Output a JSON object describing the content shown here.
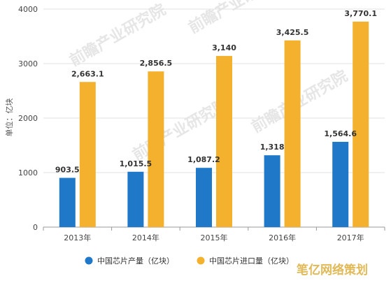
{
  "chart_data": {
    "type": "bar",
    "categories": [
      "2013年",
      "2014年",
      "2015年",
      "2016年",
      "2017年"
    ],
    "series": [
      {
        "name": "中国芯片产量（亿块）",
        "color": "#1f78c8",
        "values": [
          903.5,
          1015.5,
          1087.2,
          1318,
          1564.6
        ],
        "labels": [
          "903.5",
          "1,015.5",
          "1,087.2",
          "1,318",
          "1,564.6"
        ]
      },
      {
        "name": "中国芯片进口量（亿块）",
        "color": "#f3b12e",
        "values": [
          2663.1,
          2856.5,
          3140,
          3425.5,
          3770.1
        ],
        "labels": [
          "2,663.1",
          "2,856.5",
          "3,140",
          "3,425.5",
          "3,770.1"
        ]
      }
    ],
    "ylabel": "单位：亿块",
    "ylim": [
      0,
      4000
    ],
    "yticks": [
      0,
      1000,
      2000,
      3000,
      4000
    ],
    "grid": true,
    "legend_position": "bottom",
    "watermark": "前瞻产业研究院",
    "watermark_stamp": "笔亿网络策划"
  }
}
